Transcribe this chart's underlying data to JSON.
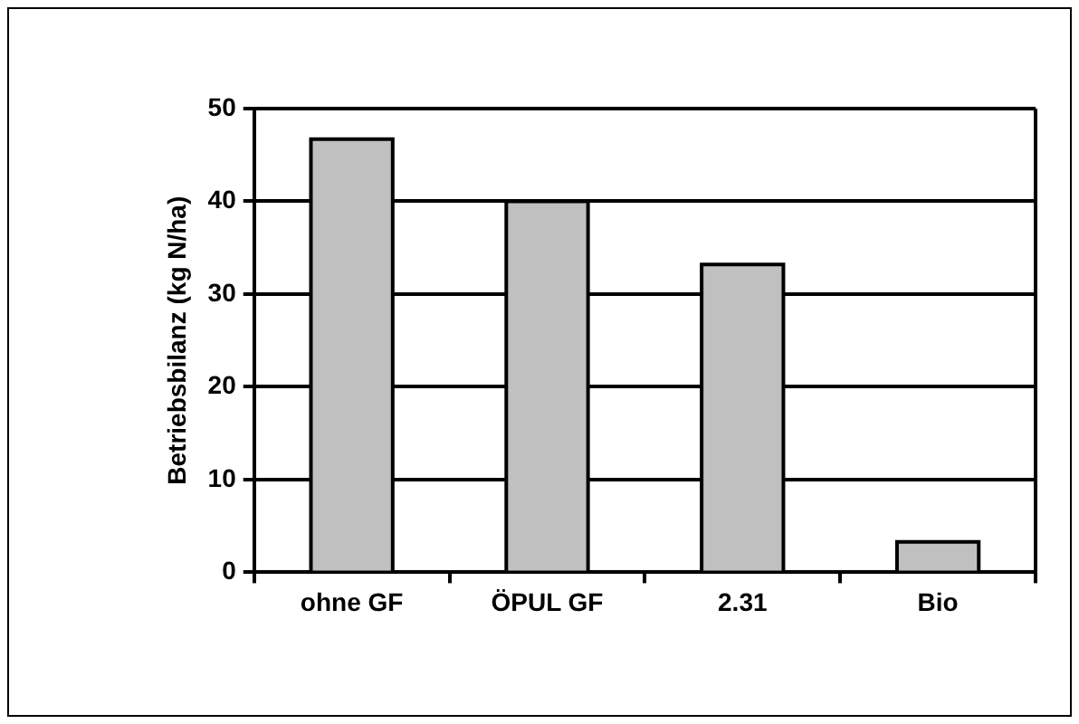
{
  "chart_data": {
    "type": "bar",
    "ylabel": "Betriebsbilanz (kg N/ha)",
    "categories": [
      "ohne GF",
      "ÖPUL GF",
      "2.31",
      "Bio"
    ],
    "values": [
      46.5,
      39.8,
      33,
      3.1
    ],
    "color": "#c0c0c0",
    "ylim": [
      0,
      50
    ],
    "yticks": [
      0,
      10,
      20,
      30,
      40,
      50
    ],
    "grid": "y",
    "legend": false
  }
}
